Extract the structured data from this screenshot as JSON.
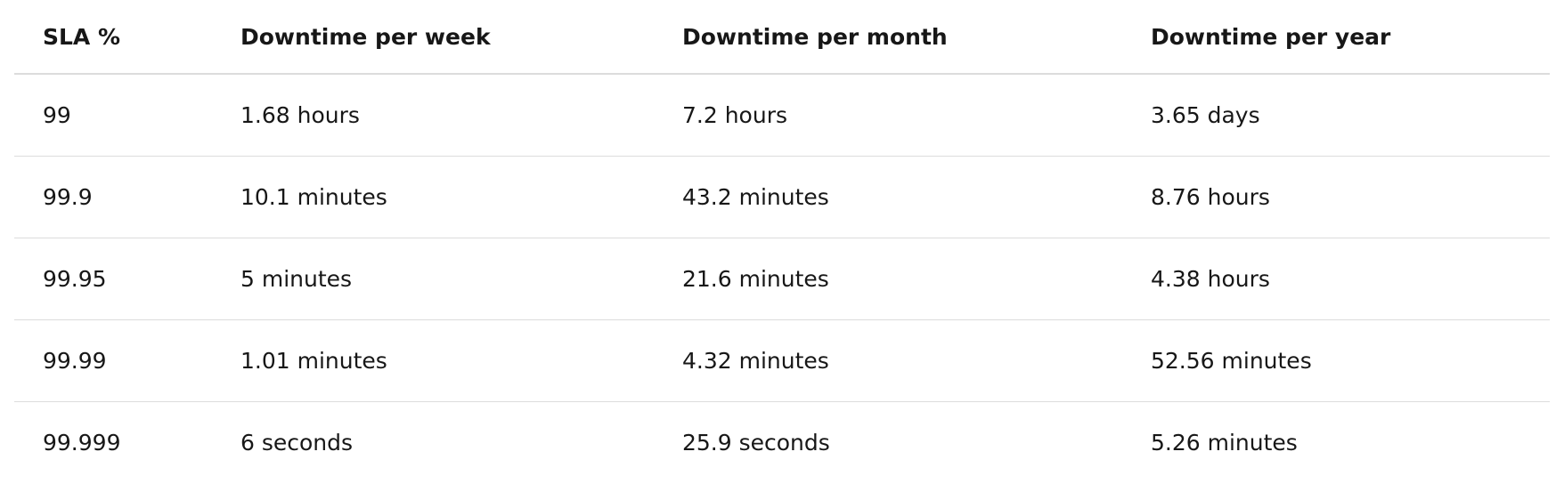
{
  "table": {
    "headers": [
      "SLA %",
      "Downtime per week",
      "Downtime per month",
      "Downtime per year"
    ],
    "rows": [
      [
        "99",
        "1.68 hours",
        "7.2 hours",
        "3.65 days"
      ],
      [
        "99.9",
        "10.1 minutes",
        "43.2 minutes",
        "8.76 hours"
      ],
      [
        "99.95",
        "5 minutes",
        "21.6 minutes",
        "4.38 hours"
      ],
      [
        "99.99",
        "1.01 minutes",
        "4.32 minutes",
        "52.56 minutes"
      ],
      [
        "99.999",
        "6 seconds",
        "25.9 seconds",
        "5.26 minutes"
      ]
    ]
  }
}
